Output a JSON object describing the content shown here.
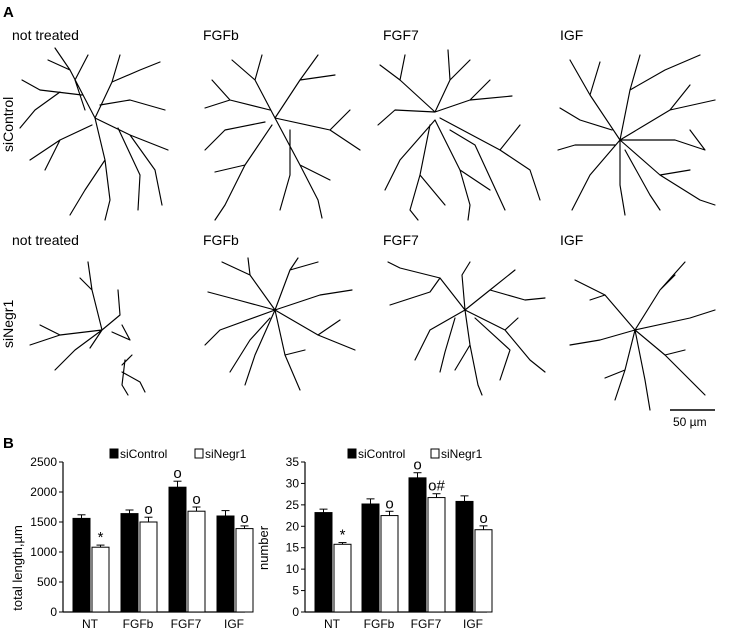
{
  "panel_a": {
    "label": "A",
    "row_labels": [
      "siControl",
      "siNegr1"
    ],
    "column_labels_row1": [
      "not treated",
      "FGFb",
      "FGF7",
      "IGF"
    ],
    "column_labels_row2": [
      "not treated",
      "FGFb",
      "FGF7",
      "IGF"
    ],
    "scale_bar": "50 µm"
  },
  "panel_b": {
    "label": "B"
  },
  "chart_data": [
    {
      "type": "bar",
      "categories": [
        "NT",
        "FGFb",
        "FGF7",
        "IGF"
      ],
      "ylabel": "total length,µm",
      "ylim": [
        0,
        2500
      ],
      "yticks": [
        "0",
        "500",
        "1000",
        "1500",
        "2000",
        "2500"
      ],
      "legend": [
        "siControl",
        "siNegr1"
      ],
      "series": [
        {
          "name": "siControl",
          "color": "#000000",
          "values": [
            1560,
            1640,
            2080,
            1600
          ],
          "errors": [
            60,
            60,
            100,
            90
          ],
          "marks": [
            "",
            "",
            "o",
            ""
          ]
        },
        {
          "name": "siNegr1",
          "color": "#ffffff",
          "values": [
            1080,
            1500,
            1680,
            1390
          ],
          "errors": [
            35,
            80,
            70,
            45
          ],
          "marks": [
            "*",
            "o",
            "o",
            "o"
          ]
        }
      ]
    },
    {
      "type": "bar",
      "categories": [
        "NT",
        "FGFb",
        "FGF7",
        "IGF"
      ],
      "ylabel": "number",
      "ylim": [
        0,
        35
      ],
      "yticks": [
        "0",
        "5",
        "10",
        "15",
        "20",
        "25",
        "30",
        "35"
      ],
      "legend": [
        "siControl",
        "siNegr1"
      ],
      "series": [
        {
          "name": "siControl",
          "color": "#000000",
          "values": [
            23.2,
            25.2,
            31.3,
            25.8
          ],
          "errors": [
            0.8,
            1.2,
            1.2,
            1.3
          ],
          "marks": [
            "",
            "",
            "o",
            ""
          ]
        },
        {
          "name": "siNegr1",
          "color": "#ffffff",
          "values": [
            15.8,
            22.5,
            26.7,
            19.2
          ],
          "errors": [
            0.4,
            1.0,
            0.9,
            0.9
          ],
          "marks": [
            "*",
            "o",
            "o#",
            "o"
          ]
        }
      ]
    }
  ]
}
